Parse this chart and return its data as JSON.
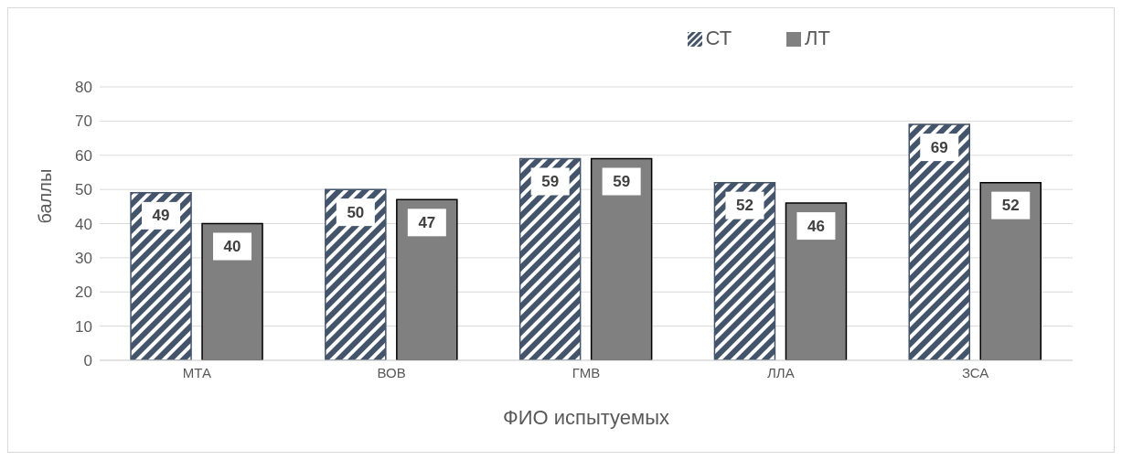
{
  "chart_data": {
    "type": "bar",
    "xlabel": "ФИО испытуемых",
    "ylabel": "баллы",
    "categories": [
      "МТА",
      "ВОВ",
      "ГМВ",
      "ЛЛА",
      "ЗСА"
    ],
    "series": [
      {
        "name": "СТ",
        "color": "#44546a",
        "values": [
          49,
          50,
          59,
          52,
          69
        ]
      },
      {
        "name": "ЛТ",
        "color": "#808080",
        "values": [
          40,
          47,
          59,
          46,
          52
        ]
      }
    ],
    "ylim": [
      0,
      80
    ],
    "yticks": [
      0,
      10,
      20,
      30,
      40,
      50,
      60,
      70,
      80
    ],
    "grid": "y",
    "legend": "top right",
    "data_labels": true
  }
}
